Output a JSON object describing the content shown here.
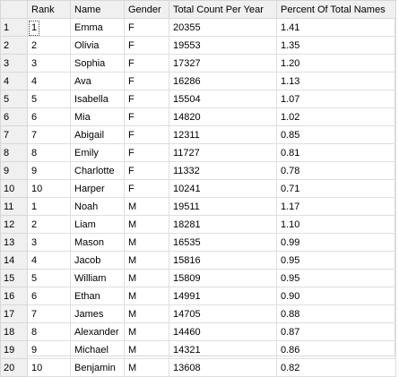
{
  "columns": [
    "Rank",
    "Name",
    "Gender",
    "Total Count Per Year",
    "Percent Of Total Names"
  ],
  "rows": [
    {
      "row": "1",
      "rank": "1",
      "name": "Emma",
      "gender": "F",
      "count": "20355",
      "percent": "1.41"
    },
    {
      "row": "2",
      "rank": "2",
      "name": "Olivia",
      "gender": "F",
      "count": "19553",
      "percent": "1.35"
    },
    {
      "row": "3",
      "rank": "3",
      "name": "Sophia",
      "gender": "F",
      "count": "17327",
      "percent": "1.20"
    },
    {
      "row": "4",
      "rank": "4",
      "name": "Ava",
      "gender": "F",
      "count": "16286",
      "percent": "1.13"
    },
    {
      "row": "5",
      "rank": "5",
      "name": "Isabella",
      "gender": "F",
      "count": "15504",
      "percent": "1.07"
    },
    {
      "row": "6",
      "rank": "6",
      "name": "Mia",
      "gender": "F",
      "count": "14820",
      "percent": "1.02"
    },
    {
      "row": "7",
      "rank": "7",
      "name": "Abigail",
      "gender": "F",
      "count": "12311",
      "percent": "0.85"
    },
    {
      "row": "8",
      "rank": "8",
      "name": "Emily",
      "gender": "F",
      "count": "11727",
      "percent": "0.81"
    },
    {
      "row": "9",
      "rank": "9",
      "name": "Charlotte",
      "gender": "F",
      "count": "11332",
      "percent": "0.78"
    },
    {
      "row": "10",
      "rank": "10",
      "name": "Harper",
      "gender": "F",
      "count": "10241",
      "percent": "0.71"
    },
    {
      "row": "11",
      "rank": "1",
      "name": "Noah",
      "gender": "M",
      "count": "19511",
      "percent": "1.17"
    },
    {
      "row": "12",
      "rank": "2",
      "name": "Liam",
      "gender": "M",
      "count": "18281",
      "percent": "1.10"
    },
    {
      "row": "13",
      "rank": "3",
      "name": "Mason",
      "gender": "M",
      "count": "16535",
      "percent": "0.99"
    },
    {
      "row": "14",
      "rank": "4",
      "name": "Jacob",
      "gender": "M",
      "count": "15816",
      "percent": "0.95"
    },
    {
      "row": "15",
      "rank": "5",
      "name": "William",
      "gender": "M",
      "count": "15809",
      "percent": "0.95"
    },
    {
      "row": "16",
      "rank": "6",
      "name": "Ethan",
      "gender": "M",
      "count": "14991",
      "percent": "0.90"
    },
    {
      "row": "17",
      "rank": "7",
      "name": "James",
      "gender": "M",
      "count": "14705",
      "percent": "0.88"
    },
    {
      "row": "18",
      "rank": "8",
      "name": "Alexander",
      "gender": "M",
      "count": "14460",
      "percent": "0.87"
    },
    {
      "row": "19",
      "rank": "9",
      "name": "Michael",
      "gender": "M",
      "count": "14321",
      "percent": "0.86"
    },
    {
      "row": "20",
      "rank": "10",
      "name": "Benjamin",
      "gender": "M",
      "count": "13608",
      "percent": "0.82"
    }
  ],
  "selected_row": "1"
}
